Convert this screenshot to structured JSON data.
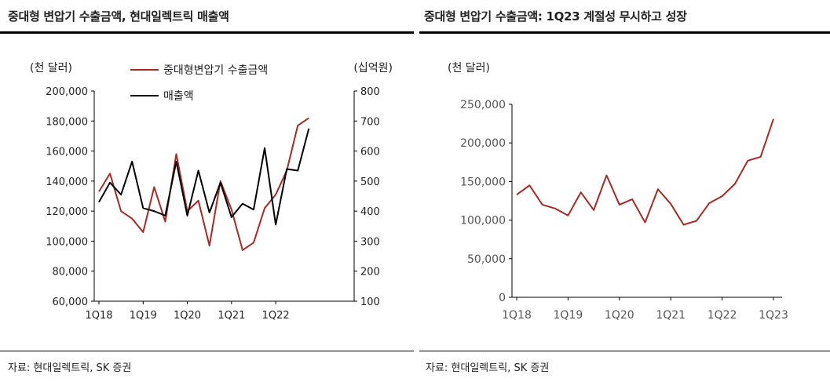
{
  "colors": {
    "red": "#a82a24",
    "black": "#000000",
    "axis": "#000000"
  },
  "left": {
    "title": "중대형 변압기 수출금액, 현대일렉트릭 매출액",
    "source": "자료: 현대일렉트릭, SK 증권"
  },
  "right": {
    "title": "중대형 변압기 수출금액: 1Q23 계절성 무시하고 성장",
    "source": "자료: 현대일렉트릭, SK 증권"
  },
  "chart_data": [
    {
      "type": "line",
      "title": "중대형 변압기 수출금액, 현대일렉트릭 매출액",
      "x_ticks": [
        "1Q18",
        "1Q19",
        "1Q20",
        "1Q21",
        "1Q22"
      ],
      "yleft_label": "(천 달러)",
      "yright_label": "(십억원)",
      "yleft_ticks": [
        "200,000",
        "180,000",
        "160,000",
        "140,000",
        "120,000",
        "100,000",
        "80,000",
        "60,000"
      ],
      "yright_ticks": [
        "800",
        "700",
        "600",
        "500",
        "400",
        "300",
        "200",
        "100"
      ],
      "yleft_lim": [
        60000,
        200000
      ],
      "yright_lim": [
        100,
        800
      ],
      "legend_position": "top-center",
      "series": [
        {
          "name": "중대형변압기 수출금액",
          "axis": "left",
          "color": "#a82a24",
          "values": [
            133000,
            145000,
            120000,
            115000,
            106000,
            136000,
            113000,
            158000,
            120000,
            127000,
            97000,
            140000,
            121000,
            94000,
            99000,
            122000,
            131000,
            147000,
            177000,
            182000
          ]
        },
        {
          "name": "매출액",
          "axis": "right",
          "color": "#000000",
          "values": [
            430,
            495,
            455,
            565,
            410,
            400,
            385,
            565,
            385,
            535,
            395,
            495,
            380,
            425,
            405,
            610,
            355,
            540,
            535,
            675
          ]
        }
      ]
    },
    {
      "type": "line",
      "title": "중대형 변압기 수출금액: 1Q23 계절성 무시하고 성장",
      "x_ticks": [
        "1Q18",
        "1Q19",
        "1Q20",
        "1Q21",
        "1Q22",
        "1Q23"
      ],
      "ylabel": "(천 달러)",
      "y_ticks": [
        "250,000",
        "200,000",
        "150,000",
        "100,000",
        "50,000",
        "0"
      ],
      "ylim": [
        0,
        250000
      ],
      "series": [
        {
          "name": "중대형변압기 수출금액",
          "color": "#a82a24",
          "values": [
            133000,
            145000,
            120000,
            115000,
            106000,
            136000,
            113000,
            158000,
            120000,
            127000,
            97000,
            140000,
            121000,
            94000,
            99000,
            122000,
            131000,
            147000,
            177000,
            182000,
            231000
          ]
        }
      ]
    }
  ]
}
